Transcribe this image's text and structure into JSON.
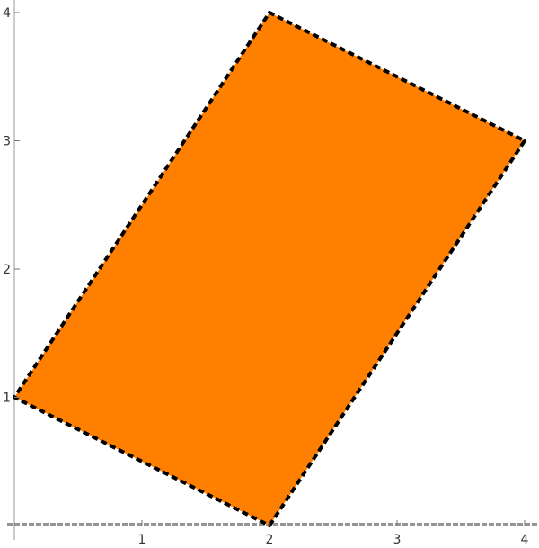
{
  "chart_data": {
    "type": "polygon",
    "title": "",
    "xlabel": "",
    "ylabel": "",
    "xlim": [
      0,
      4
    ],
    "ylim": [
      0,
      4
    ],
    "grid": false,
    "x_ticks": [
      1,
      2,
      3,
      4
    ],
    "y_ticks": [
      1,
      2,
      3,
      4
    ],
    "x_tick_labels": [
      "1",
      "2",
      "3",
      "4"
    ],
    "y_tick_labels": [
      "1",
      "2",
      "3",
      "4"
    ],
    "polygon": {
      "vertices": [
        {
          "x": 2,
          "y": 0
        },
        {
          "x": 4,
          "y": 3
        },
        {
          "x": 2,
          "y": 4
        },
        {
          "x": 0,
          "y": 1
        }
      ],
      "fill_color": "#ff7f00",
      "edge_color": "#000000",
      "edge_style": "dashed"
    },
    "x_axis_line_style": "dashed"
  }
}
